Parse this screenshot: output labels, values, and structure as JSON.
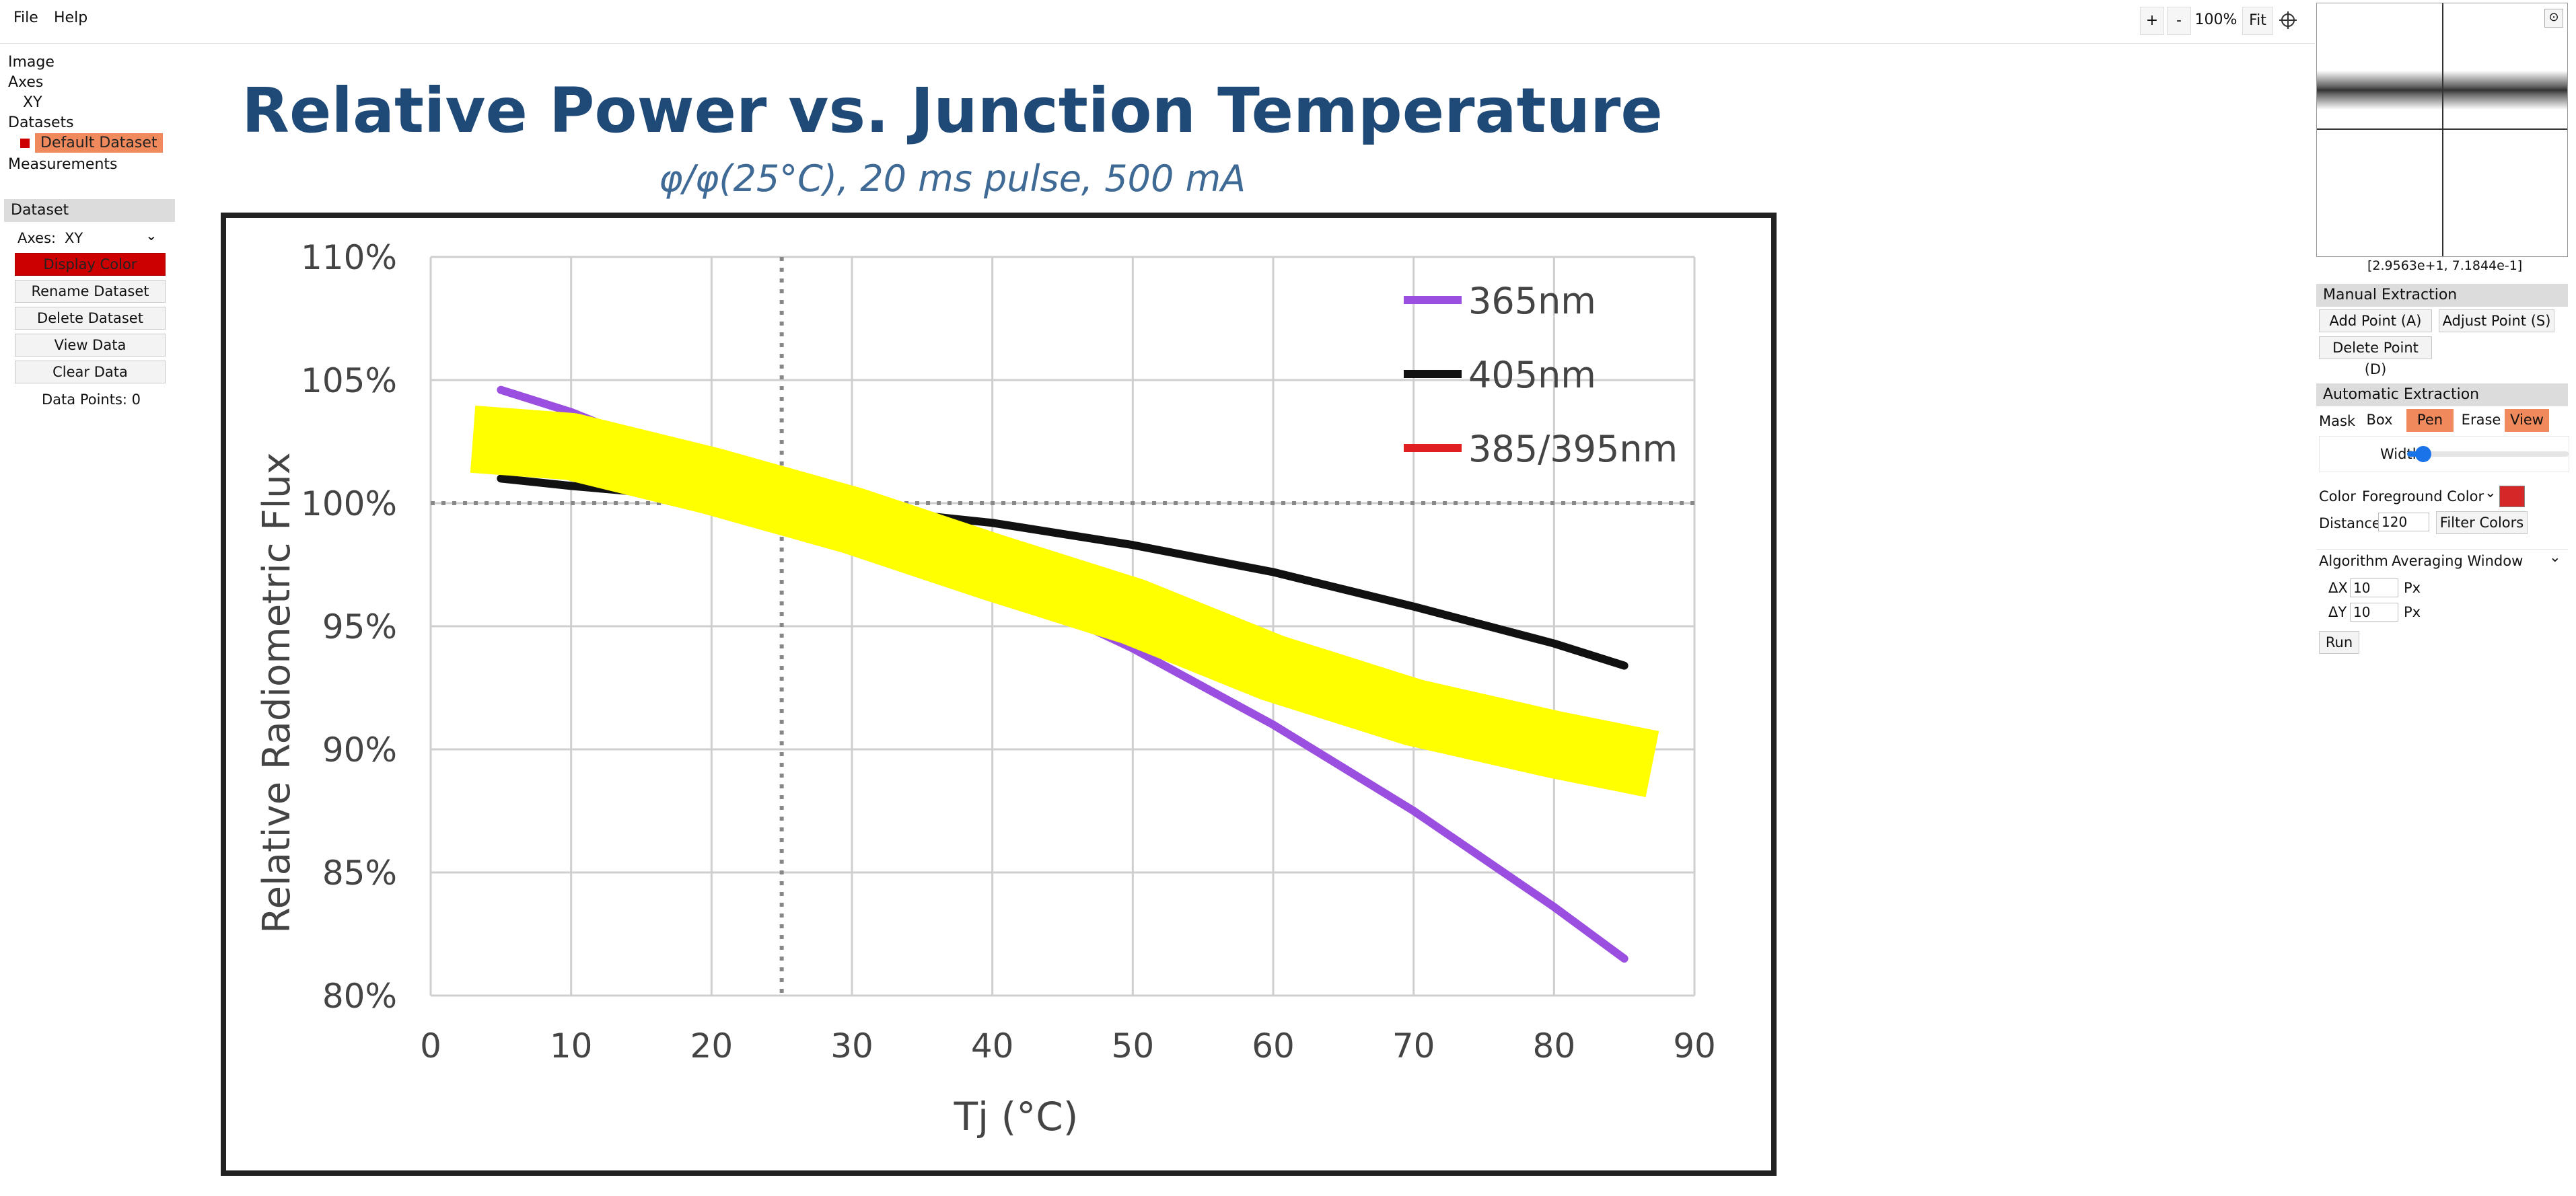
{
  "menu": {
    "file": "File",
    "help": "Help"
  },
  "zoom": {
    "plus": "+",
    "minus": "-",
    "level": "100%",
    "fit": "Fit",
    "crosshair_icon": "crosshair-icon"
  },
  "tree": {
    "image": "Image",
    "axes": "Axes",
    "axes_xy": "XY",
    "datasets": "Datasets",
    "default_dataset": "Default Dataset",
    "measurements": "Measurements"
  },
  "dataset_panel": {
    "header": "Dataset",
    "axes_label": "Axes:",
    "axes_value": "XY",
    "display_color": "Display Color",
    "rename": "Rename Dataset",
    "delete": "Delete Dataset",
    "view": "View Data",
    "clear": "Clear Data",
    "points": "Data Points: 0",
    "color": "#cc0000"
  },
  "magnifier": {
    "coords": "[2.9563e+1, 7.1844e-1]"
  },
  "manual": {
    "header": "Manual Extraction",
    "add": "Add Point (A)",
    "adjust": "Adjust Point (S)",
    "delete": "Delete Point (D)"
  },
  "automatic": {
    "header": "Automatic Extraction",
    "mask_label": "Mask",
    "box": "Box",
    "pen": "Pen",
    "erase": "Erase",
    "view": "View",
    "width_label": "Width",
    "width_value": 0.1,
    "color_label": "Color",
    "color_mode": "Foreground Color",
    "color_swatch": "#d62728",
    "distance_label": "Distance",
    "distance_value": "120",
    "filter": "Filter Colors",
    "algorithm_label": "Algorithm",
    "algorithm_value": "Averaging Window",
    "dx_label": "ΔX",
    "dx_value": "10",
    "dy_label": "ΔY",
    "dy_value": "10",
    "px_unit": "Px",
    "run": "Run"
  },
  "chart_data": {
    "type": "line",
    "title": "Relative Power vs. Junction Temperature",
    "subtitle": "φ/φ(25°C), 20 ms  pulse, 500 mA",
    "xlabel": "Tj (°C)",
    "ylabel": "Relative Radiometric Flux",
    "xlim": [
      0,
      90
    ],
    "ylim": [
      80,
      110
    ],
    "x_ticks": [
      "0",
      "10",
      "20",
      "30",
      "40",
      "50",
      "60",
      "70",
      "80",
      "90"
    ],
    "y_ticks": [
      "80%",
      "85%",
      "90%",
      "95%",
      "100%",
      "105%",
      "110%"
    ],
    "grid": true,
    "legend_position": "top-right",
    "reference_x": 25,
    "reference_y": 100,
    "series": [
      {
        "name": "365nm",
        "color": "#9b4fe0",
        "x": [
          5,
          10,
          20,
          25,
          30,
          40,
          50,
          60,
          70,
          80,
          85
        ],
        "y": [
          104.6,
          103.7,
          101.4,
          100.0,
          98.8,
          96.8,
          94.1,
          91.0,
          87.5,
          83.6,
          81.5
        ]
      },
      {
        "name": "405nm",
        "color": "#111111",
        "x": [
          5,
          10,
          20,
          25,
          30,
          40,
          50,
          60,
          70,
          80,
          85
        ],
        "y": [
          101.0,
          100.7,
          100.2,
          100.0,
          99.8,
          99.2,
          98.3,
          97.2,
          95.8,
          94.3,
          93.4
        ]
      },
      {
        "name": "385/395nm",
        "color": "#e02020",
        "x": [],
        "y": []
      }
    ],
    "highlight_mask": {
      "color": "#ffff00",
      "x": [
        3,
        10,
        20,
        30,
        40,
        50,
        60,
        70,
        80,
        87
      ],
      "y": [
        102.6,
        102.3,
        100.9,
        99.3,
        97.4,
        95.6,
        93.3,
        91.5,
        90.2,
        89.4
      ]
    }
  }
}
